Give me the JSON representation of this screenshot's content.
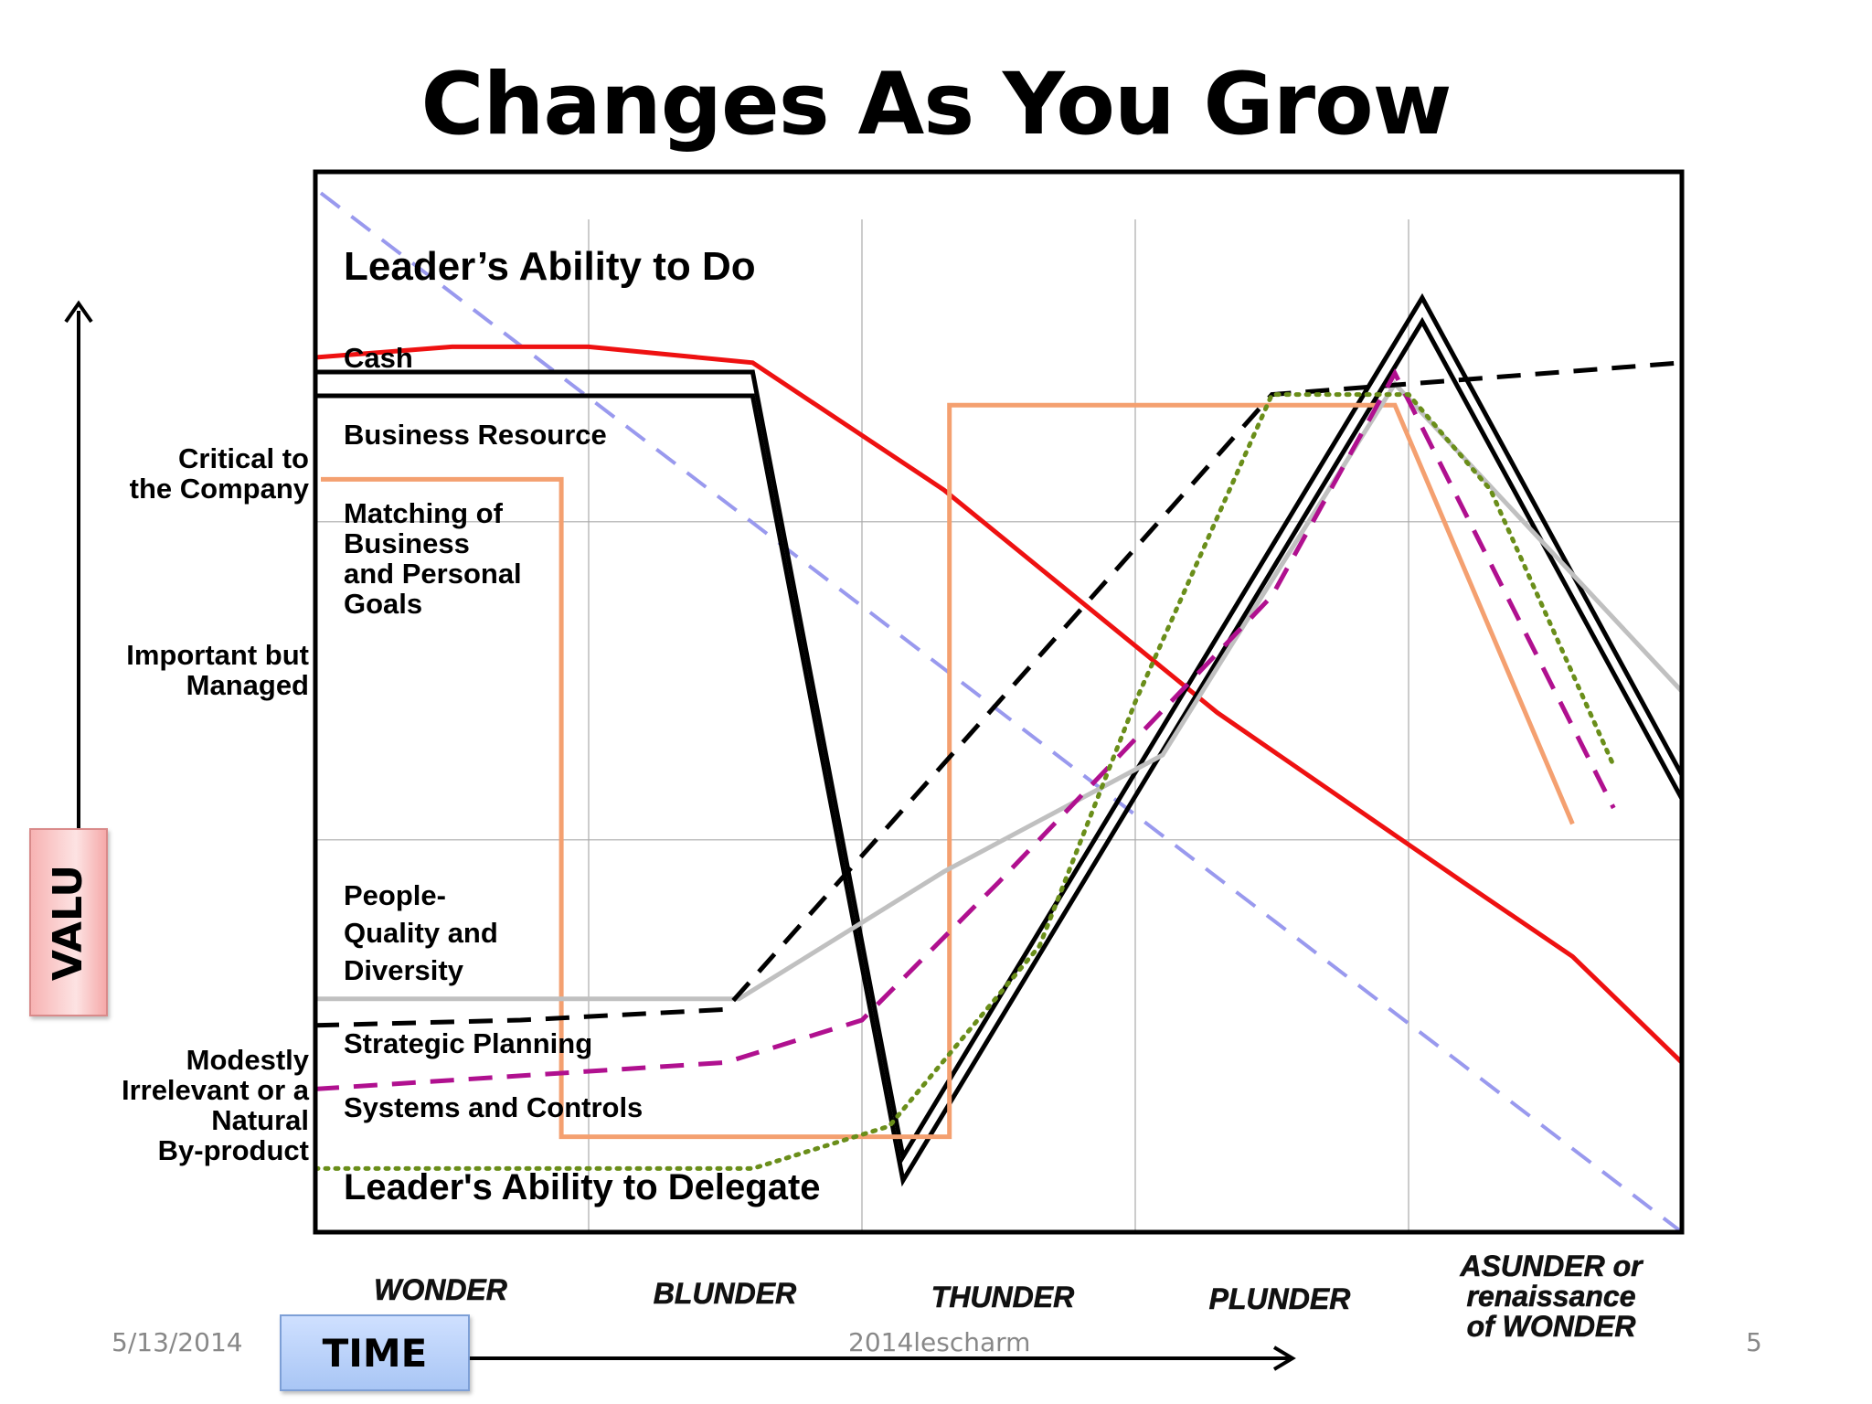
{
  "slide": {
    "title": "Changes As You Grow",
    "y_label": "VALU",
    "x_label": "TIME",
    "footer_date": "5/13/2014",
    "footer_center": "2014lescharm",
    "page_number": "5"
  },
  "chart_data": {
    "type": "line",
    "title": "Changes As You Grow",
    "xlabel": "TIME",
    "ylabel": "VALU",
    "x_ticks": [
      "WONDER",
      "BLUNDER",
      "THUNDER",
      "PLUNDER",
      "ASUNDER or renaissance of WONDER"
    ],
    "x_tick_lines": [
      [
        "WONDER"
      ],
      [
        "BLUNDER"
      ],
      [
        "THUNDER"
      ],
      [
        "PLUNDER"
      ],
      [
        "ASUNDER or",
        "renaissance",
        "of WONDER"
      ]
    ],
    "y_ticks": [
      {
        "label": "Critical to the Company",
        "lines": [
          "Critical to",
          "the Company"
        ],
        "y": 84
      },
      {
        "label": "Important but Managed",
        "lines": [
          "Important but",
          "Managed"
        ],
        "y": 64
      },
      {
        "label": "Modestly Irrelevant or a Natural By-product",
        "lines": [
          "Modestly",
          "Irrelevant or a",
          "Natural",
          "By-product"
        ],
        "y": 10
      }
    ],
    "xlim": [
      0,
      5
    ],
    "ylim": [
      0,
      100
    ],
    "grid": true,
    "annotations": [
      {
        "text": "Leader’s Ability to Do",
        "x": 0.1,
        "y": 90
      },
      {
        "text": "Cash",
        "x": 0.1,
        "y": 82
      },
      {
        "text": "Business Resource",
        "x": 0.1,
        "y": 75
      },
      {
        "text": "Matching of Business and Personal Goals",
        "x": 0.1,
        "y": 64
      },
      {
        "text": "People- Quality and Diversity",
        "x": 0.1,
        "y": 30
      },
      {
        "text": "Strategic Planning",
        "x": 0.1,
        "y": 17
      },
      {
        "text": "Systems and Controls",
        "x": 0.1,
        "y": 11
      },
      {
        "text": "Leader's Ability to Delegate",
        "x": 0.1,
        "y": 3
      }
    ],
    "series": [
      {
        "name": "Leader’s Ability to Do",
        "color": "#9999ee",
        "style": "dashed",
        "points": [
          [
            0.02,
            98
          ],
          [
            5.0,
            0
          ]
        ]
      },
      {
        "name": "Cash",
        "color": "#ee1111",
        "style": "solid",
        "points": [
          [
            0.0,
            82.5
          ],
          [
            0.5,
            83.5
          ],
          [
            1.0,
            83.5
          ],
          [
            1.6,
            82
          ],
          [
            2.3,
            70
          ],
          [
            3.3,
            49
          ],
          [
            4.2,
            33
          ],
          [
            4.6,
            26
          ],
          [
            5.0,
            16
          ]
        ]
      },
      {
        "name": "Business Resource",
        "color": "#000000",
        "style": "double",
        "points": [
          [
            0.0,
            80
          ],
          [
            1.6,
            80
          ],
          [
            2.15,
            6
          ],
          [
            4.05,
            87
          ],
          [
            5.0,
            42
          ]
        ]
      },
      {
        "name": "Matching of Business and Personal Goals",
        "color": "#f4a070",
        "style": "solid",
        "points": [
          [
            0.02,
            71
          ],
          [
            0.9,
            71
          ],
          [
            0.9,
            9
          ],
          [
            2.32,
            9
          ],
          [
            2.32,
            78
          ],
          [
            3.95,
            78
          ],
          [
            4.6,
            38.5
          ]
        ]
      },
      {
        "name": "People- Quality and Diversity",
        "color": "#c0c0c0",
        "style": "solid",
        "points": [
          [
            0.0,
            22
          ],
          [
            1.55,
            22
          ],
          [
            2.3,
            34
          ],
          [
            3.1,
            45
          ],
          [
            3.95,
            80
          ],
          [
            5.0,
            51
          ]
        ]
      },
      {
        "name": "Strategic Planning",
        "color": "#000000",
        "style": "dashed",
        "points": [
          [
            0.0,
            19.5
          ],
          [
            0.75,
            20
          ],
          [
            1.5,
            21
          ],
          [
            3.5,
            79
          ],
          [
            5.0,
            82
          ]
        ]
      },
      {
        "name": "Systems and Controls",
        "color": "#b0108f",
        "style": "dashed",
        "points": [
          [
            0.0,
            13.5
          ],
          [
            1.5,
            16
          ],
          [
            2.0,
            20
          ],
          [
            2.5,
            33
          ],
          [
            3.5,
            60
          ],
          [
            3.95,
            81
          ],
          [
            4.75,
            40
          ]
        ]
      },
      {
        "name": "Leader's Ability to Delegate",
        "color": "#6a8e1a",
        "style": "dotted",
        "points": [
          [
            0.0,
            6
          ],
          [
            1.6,
            6
          ],
          [
            2.1,
            10
          ],
          [
            2.65,
            27
          ],
          [
            3.0,
            50
          ],
          [
            3.5,
            79
          ],
          [
            4.0,
            79
          ],
          [
            4.3,
            70
          ],
          [
            4.75,
            44
          ]
        ]
      }
    ]
  }
}
